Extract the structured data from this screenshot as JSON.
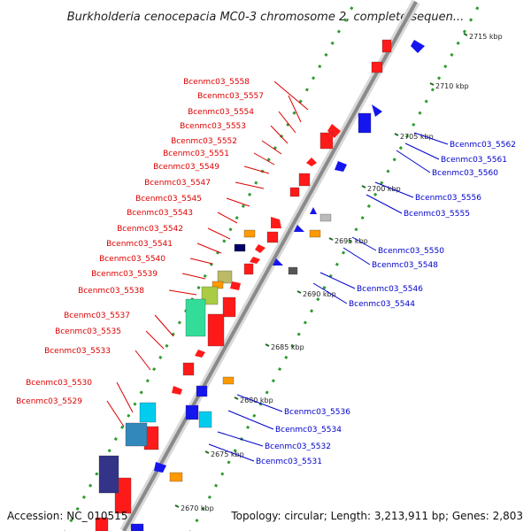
{
  "title": "Burkholderia cenocepacia MC0-3 chromosome 2, complete sequen...",
  "footer": {
    "accession": "Accession: NC_010515",
    "summary": "Topology: circular; Length: 3,213,911 bp; Genes: 2,803"
  },
  "colors": {
    "backbone": "#8a8a8a",
    "backbone_light": "#d9d9d9",
    "label_left": "#dd0000",
    "label_right": "#0000cc",
    "tick_dot": "#2f9a2f",
    "tick_dash": "#1e6e1e",
    "forward_cds": "#ff1a1a",
    "reverse_cds": "#1515ee"
  },
  "scale": {
    "ticks": [
      {
        "label": "2670 kbp"
      },
      {
        "label": "2675 kbp"
      },
      {
        "label": "2680 kbp"
      },
      {
        "label": "2685 kbp"
      },
      {
        "label": "2690 kbp"
      },
      {
        "label": "2695 kbp"
      },
      {
        "label": "2700 kbp"
      },
      {
        "label": "2705 kbp"
      },
      {
        "label": "2710 kbp"
      },
      {
        "label": "2715 kbp"
      }
    ]
  },
  "left_labels": [
    "Bcenmc03_5558",
    "Bcenmc03_5557",
    "Bcenmc03_5554",
    "Bcenmc03_5553",
    "Bcenmc03_5552",
    "Bcenmc03_5551",
    "Bcenmc03_5549",
    "Bcenmc03_5547",
    "Bcenmc03_5545",
    "Bcenmc03_5543",
    "Bcenmc03_5542",
    "Bcenmc03_5541",
    "Bcenmc03_5540",
    "Bcenmc03_5539",
    "Bcenmc03_5538",
    "Bcenmc03_5537",
    "Bcenmc03_5535",
    "Bcenmc03_5533",
    "Bcenmc03_5530",
    "Bcenmc03_5529"
  ],
  "right_labels": [
    "Bcenmc03_5562",
    "Bcenmc03_5561",
    "Bcenmc03_5560",
    "Bcenmc03_5556",
    "Bcenmc03_5555",
    "Bcenmc03_5550",
    "Bcenmc03_5548",
    "Bcenmc03_5546",
    "Bcenmc03_5544",
    "Bcenmc03_5536",
    "Bcenmc03_5534",
    "Bcenmc03_5532",
    "Bcenmc03_5531"
  ]
}
